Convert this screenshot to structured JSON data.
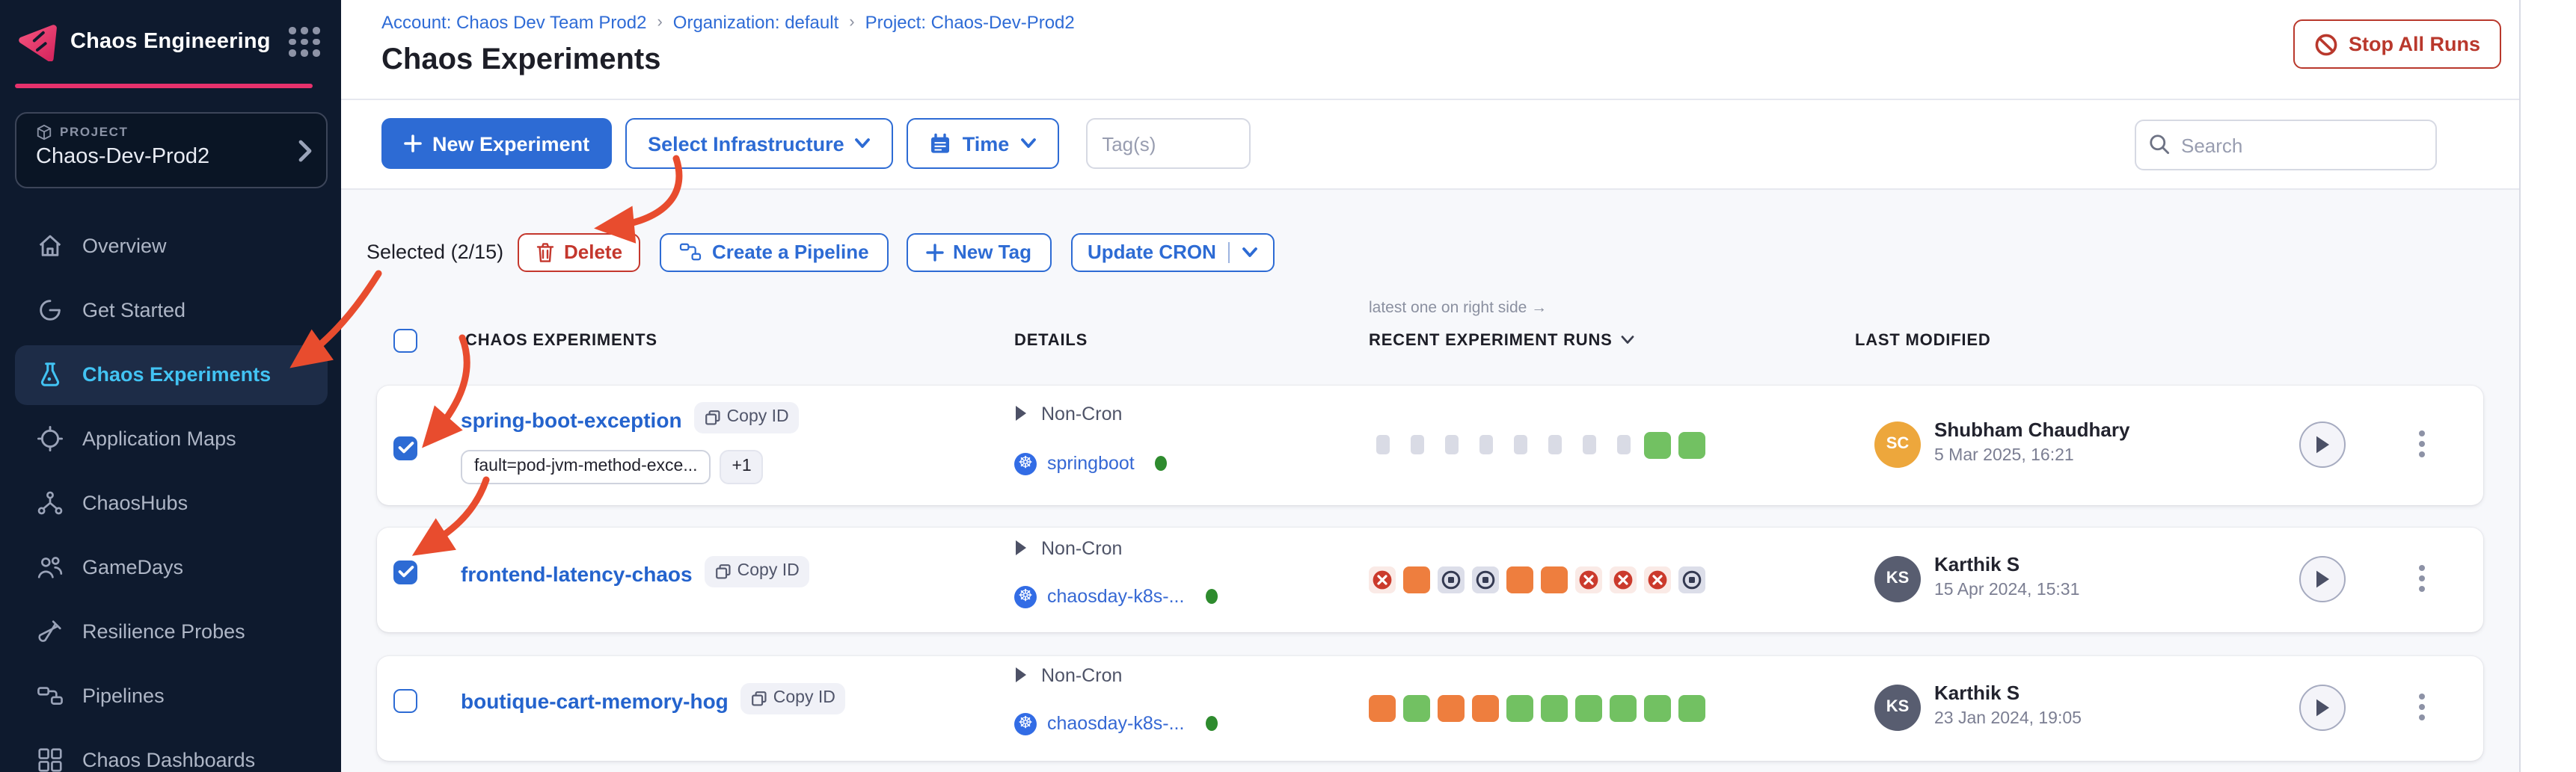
{
  "sidebar": {
    "product": "Chaos Engineering",
    "project_label": "PROJECT",
    "project_name": "Chaos-Dev-Prod2",
    "items": [
      {
        "label": "Overview",
        "icon": "home-icon"
      },
      {
        "label": "Get Started",
        "icon": "get-started-icon"
      },
      {
        "label": "Chaos Experiments",
        "icon": "flask-icon",
        "selected": true
      },
      {
        "label": "Application Maps",
        "icon": "target-icon"
      },
      {
        "label": "ChaosHubs",
        "icon": "network-icon"
      },
      {
        "label": "GameDays",
        "icon": "people-icon"
      },
      {
        "label": "Resilience Probes",
        "icon": "test-tube-icon"
      },
      {
        "label": "Pipelines",
        "icon": "pipeline-icon"
      },
      {
        "label": "Chaos Dashboards",
        "icon": "dashboard-icon"
      }
    ]
  },
  "header": {
    "breadcrumb": [
      "Account: Chaos Dev Team Prod2",
      "Organization: default",
      "Project: Chaos-Dev-Prod2"
    ],
    "title": "Chaos Experiments",
    "stop_all_runs": "Stop All Runs"
  },
  "toolbar": {
    "new_experiment": "New Experiment",
    "select_infrastructure": "Select Infrastructure",
    "time": "Time",
    "tags_placeholder": "Tag(s)",
    "search_placeholder": "Search"
  },
  "bulkbar": {
    "selected": "Selected (2/15)",
    "delete": "Delete",
    "create_pipeline": "Create a Pipeline",
    "new_tag": "New Tag",
    "update_cron": "Update CRON"
  },
  "table": {
    "runs_note": "latest one on right side →",
    "headers": {
      "experiments": "CHAOS EXPERIMENTS",
      "details": "DETAILS",
      "runs": "RECENT EXPERIMENT RUNS",
      "modified": "LAST MODIFIED"
    }
  },
  "rows": [
    {
      "name": "spring-boot-exception",
      "copy_id": "Copy ID",
      "checked": true,
      "tags": [
        "fault=pod-jvm-method-exce..."
      ],
      "extra_tag": "+1",
      "cron": "Non-Cron",
      "infra": "springboot",
      "runs": [
        "na",
        "na",
        "na",
        "na",
        "na",
        "na",
        "na",
        "na",
        "green",
        "green"
      ],
      "modified_by": "Shubham Chaudhary",
      "initials": "SC",
      "avatar_color": "#eda73c",
      "date": "5 Mar 2025, 16:21"
    },
    {
      "name": "frontend-latency-chaos",
      "copy_id": "Copy ID",
      "checked": true,
      "cron": "Non-Cron",
      "infra": "chaosday-k8s-...",
      "runs": [
        "failed",
        "orange",
        "stopped",
        "stopped",
        "orange",
        "orange",
        "failed",
        "failed",
        "failed",
        "stopped"
      ],
      "modified_by": "Karthik S",
      "initials": "KS",
      "avatar_color": "#585d70",
      "date": "15 Apr 2024, 15:31"
    },
    {
      "name": "boutique-cart-memory-hog",
      "copy_id": "Copy ID",
      "checked": false,
      "cron": "Non-Cron",
      "infra": "chaosday-k8s-...",
      "runs": [
        "orange",
        "green",
        "orange",
        "orange",
        "green",
        "green",
        "green",
        "green",
        "green",
        "green"
      ],
      "modified_by": "Karthik S",
      "initials": "KS",
      "avatar_color": "#585d70",
      "date": "23 Jan 2024, 19:05"
    }
  ],
  "colors": {
    "accent_blue": "#2d6bd4",
    "danger_red": "#b9382c",
    "run_green": "#72c162",
    "run_orange": "#ee7e3e",
    "run_failed_icon": "#cb3a2c",
    "run_na_gray": "#d9dbe5",
    "annotation_red": "#e84c2e",
    "sidebar_bg": "#0e1a2e",
    "selected_nav": "#42c3f3",
    "brand_pink": "#e6316c"
  }
}
